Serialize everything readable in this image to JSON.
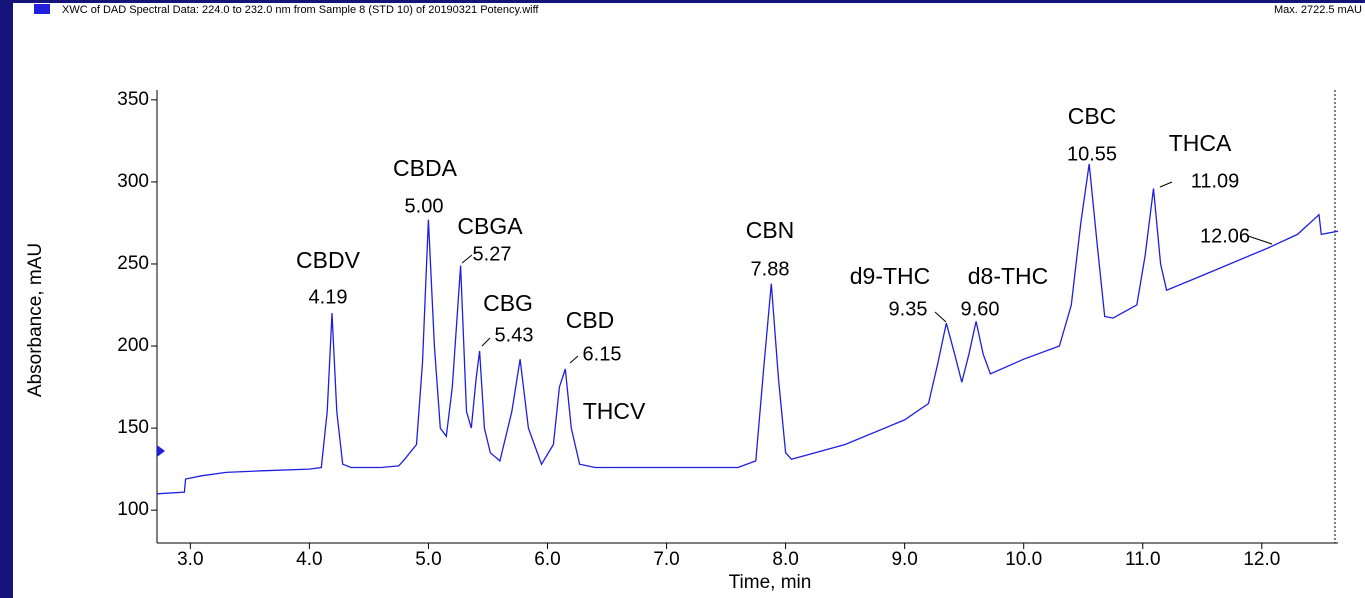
{
  "chart_data": {
    "type": "line",
    "title": "XWC of DAD Spectral Data: 224.0 to 232.0 nm from Sample 8 (STD 10) of 20190321 Potency.wiff",
    "subtitle": "Max. 2722.5 mAU",
    "x_label": "Time, min",
    "y_label": "Absorbance, mAU",
    "xlim": [
      2.72,
      12.64
    ],
    "ylim": [
      80,
      356
    ],
    "xticks": [
      {
        "value": 3,
        "label": "3.0"
      },
      {
        "value": 4,
        "label": "4.0"
      },
      {
        "value": 5,
        "label": "5.0"
      },
      {
        "value": 6,
        "label": "6.0"
      },
      {
        "value": 7,
        "label": "7.0"
      },
      {
        "value": 8,
        "label": "8.0"
      },
      {
        "value": 9,
        "label": "9.0"
      },
      {
        "value": 10,
        "label": "10.0"
      },
      {
        "value": 11,
        "label": "11.0"
      },
      {
        "value": 12,
        "label": "12.0"
      }
    ],
    "yticks": [
      100,
      150,
      200,
      250,
      300,
      350
    ],
    "color": "#1f1fe0",
    "x": [
      2.72,
      2.95,
      2.96,
      3.1,
      3.3,
      3.6,
      4.0,
      4.1,
      4.15,
      4.19,
      4.23,
      4.28,
      4.35,
      4.6,
      4.75,
      4.8,
      4.9,
      4.95,
      5.0,
      5.05,
      5.1,
      5.15,
      5.2,
      5.27,
      5.32,
      5.36,
      5.4,
      5.43,
      5.47,
      5.52,
      5.6,
      5.7,
      5.77,
      5.84,
      5.95,
      6.05,
      6.1,
      6.15,
      6.2,
      6.27,
      6.4,
      7.0,
      7.6,
      7.75,
      7.82,
      7.88,
      7.94,
      8.0,
      8.05,
      8.5,
      9.0,
      9.2,
      9.28,
      9.35,
      9.42,
      9.48,
      9.54,
      9.6,
      9.66,
      9.72,
      10.0,
      10.3,
      10.4,
      10.48,
      10.55,
      10.62,
      10.68,
      10.75,
      10.95,
      11.02,
      11.09,
      11.15,
      11.2,
      11.5,
      12.06,
      12.3,
      12.48,
      12.5,
      12.64
    ],
    "values": [
      110,
      111,
      119,
      121,
      123,
      124,
      125,
      126,
      160,
      220,
      160,
      128,
      126,
      126,
      127,
      131,
      140,
      190,
      277,
      200,
      150,
      145,
      175,
      249,
      160,
      150,
      180,
      197,
      150,
      135,
      130,
      160,
      192,
      150,
      128,
      140,
      175,
      186,
      150,
      128,
      126,
      126,
      126,
      130,
      190,
      238,
      180,
      135,
      131,
      140,
      155,
      165,
      190,
      214,
      195,
      178,
      195,
      215,
      195,
      183,
      192,
      200,
      225,
      275,
      311,
      260,
      218,
      217,
      225,
      255,
      296,
      250,
      234,
      243,
      260,
      268,
      280,
      268,
      270
    ],
    "annotations": [
      {
        "name": "CBDV",
        "label": "4.19"
      },
      {
        "name": "CBDA",
        "label": "5.00"
      },
      {
        "name": "CBGA",
        "label": "5.27"
      },
      {
        "name": "CBG",
        "label": "5.43"
      },
      {
        "name": "CBD",
        "label": "6.15"
      },
      {
        "name": "THCV"
      },
      {
        "name": "CBN",
        "label": "7.88"
      },
      {
        "name": "d9-THC",
        "label": "9.35"
      },
      {
        "name": "d8-THC",
        "label": "9.60"
      },
      {
        "name": "CBC",
        "label": "10.55"
      },
      {
        "name": "THCA",
        "label": "11.09"
      },
      {
        "label": "12.06"
      }
    ]
  }
}
